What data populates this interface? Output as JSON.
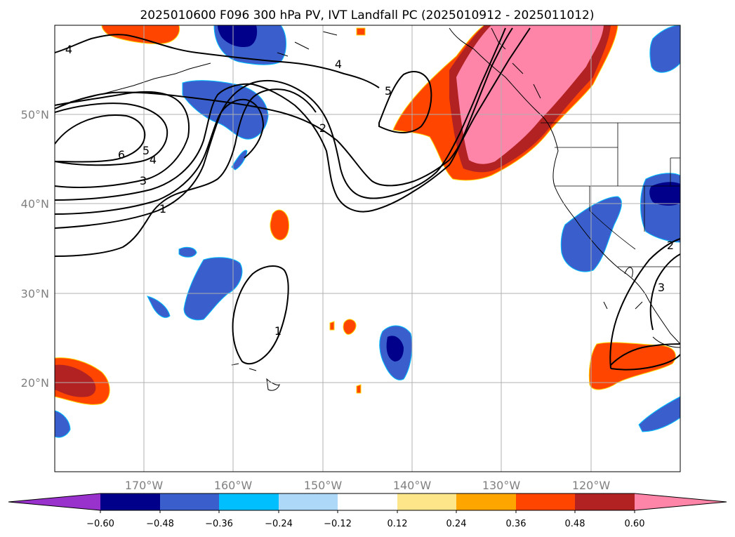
{
  "title": "2025010600 F096 300 hPa PV, IVT Landfall PC (2025010912 - 2025011012)",
  "map": {
    "lat_ticks": [
      "50°N",
      "40°N",
      "30°N",
      "20°N"
    ],
    "lon_ticks": [
      "170°W",
      "160°W",
      "150°W",
      "140°W",
      "130°W",
      "120°W"
    ],
    "grid": true
  },
  "colorbar": {
    "extend": "both",
    "ticks": [
      "−0.60",
      "−0.48",
      "−0.36",
      "−0.24",
      "−0.12",
      "0.12",
      "0.24",
      "0.36",
      "0.48",
      "0.60"
    ],
    "colors": [
      "#9932cc",
      "#00008b",
      "#3a5fcd",
      "#00bfff",
      "#add8f7",
      "#ffffff",
      "#fde68a",
      "#ffa500",
      "#ff4500",
      "#b22222",
      "#ff85a8"
    ]
  },
  "contour_labels": [
    "4",
    "4",
    "5",
    "2",
    "6",
    "5",
    "4",
    "3",
    "1",
    "1",
    "2",
    "3"
  ]
}
